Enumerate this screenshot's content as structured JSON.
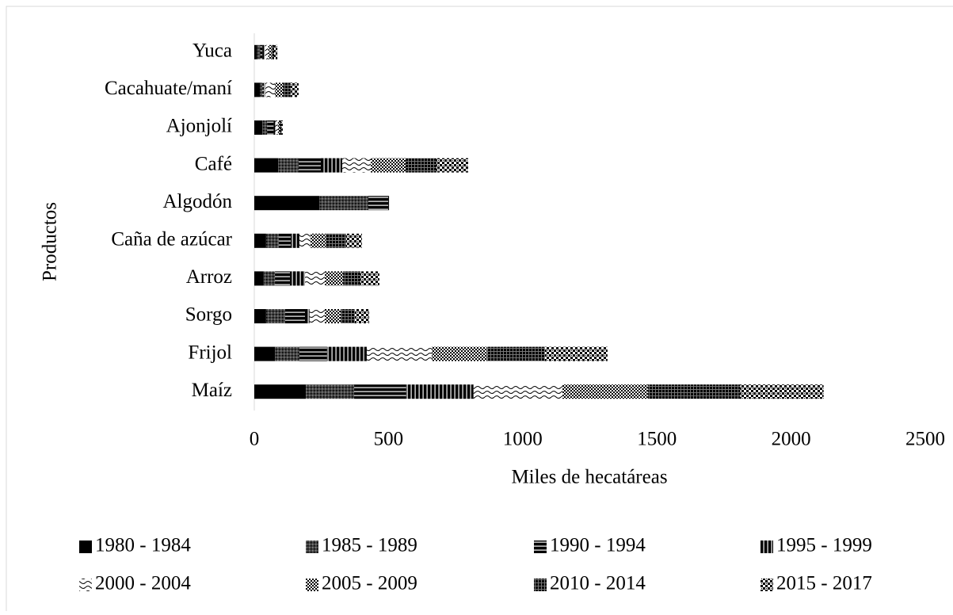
{
  "chart_data": {
    "type": "stacked-bar-horizontal",
    "categories": [
      "Maíz",
      "Frijol",
      "Sorgo",
      "Arroz",
      "Caña de azúcar",
      "Algodón",
      "Café",
      "Ajonjolí",
      "Cacahuate/maní",
      "Yuca"
    ],
    "series": [
      {
        "name": "1980 - 1984",
        "color": "#000000",
        "pattern": "solid",
        "values": [
          192,
          77,
          44,
          35,
          44,
          242,
          89,
          30,
          21,
          10
        ]
      },
      {
        "name": "1985 - 1989",
        "color": "#000000",
        "pattern": "dots",
        "values": [
          180,
          91,
          71,
          42,
          47,
          183,
          76,
          18,
          9,
          12
        ]
      },
      {
        "name": "1990 - 1994",
        "color": "#000000",
        "pattern": "hlines",
        "values": [
          194,
          103,
          74,
          56,
          45,
          74,
          83,
          24,
          6,
          8
        ]
      },
      {
        "name": "1995 - 1999",
        "color": "#000000",
        "pattern": "vlines",
        "values": [
          251,
          148,
          17,
          56,
          32,
          3,
          80,
          6,
          6,
          10
        ]
      },
      {
        "name": "2000 - 2004",
        "color": "#000000",
        "pattern": "waves",
        "values": [
          331,
          242,
          57,
          74,
          41,
          0,
          106,
          10,
          35,
          12
        ]
      },
      {
        "name": "2005 - 2009",
        "color": "#000000",
        "pattern": "checker",
        "values": [
          318,
          206,
          59,
          68,
          57,
          0,
          130,
          6,
          30,
          12
        ]
      },
      {
        "name": "2010 - 2014",
        "color": "#000000",
        "pattern": "grid",
        "values": [
          345,
          216,
          53,
          65,
          76,
          0,
          115,
          6,
          28,
          10
        ]
      },
      {
        "name": "2015 - 2017",
        "color": "#000000",
        "pattern": "dense",
        "values": [
          310,
          233,
          53,
          70,
          59,
          0,
          118,
          6,
          30,
          12
        ]
      }
    ],
    "x_label": "Miles de hecatáreas",
    "y_label": "Productos",
    "xlim": [
      0,
      2500
    ],
    "xticks": [
      0,
      500,
      1000,
      1500,
      2000,
      2500
    ],
    "grid": false,
    "legend": "bottom"
  }
}
